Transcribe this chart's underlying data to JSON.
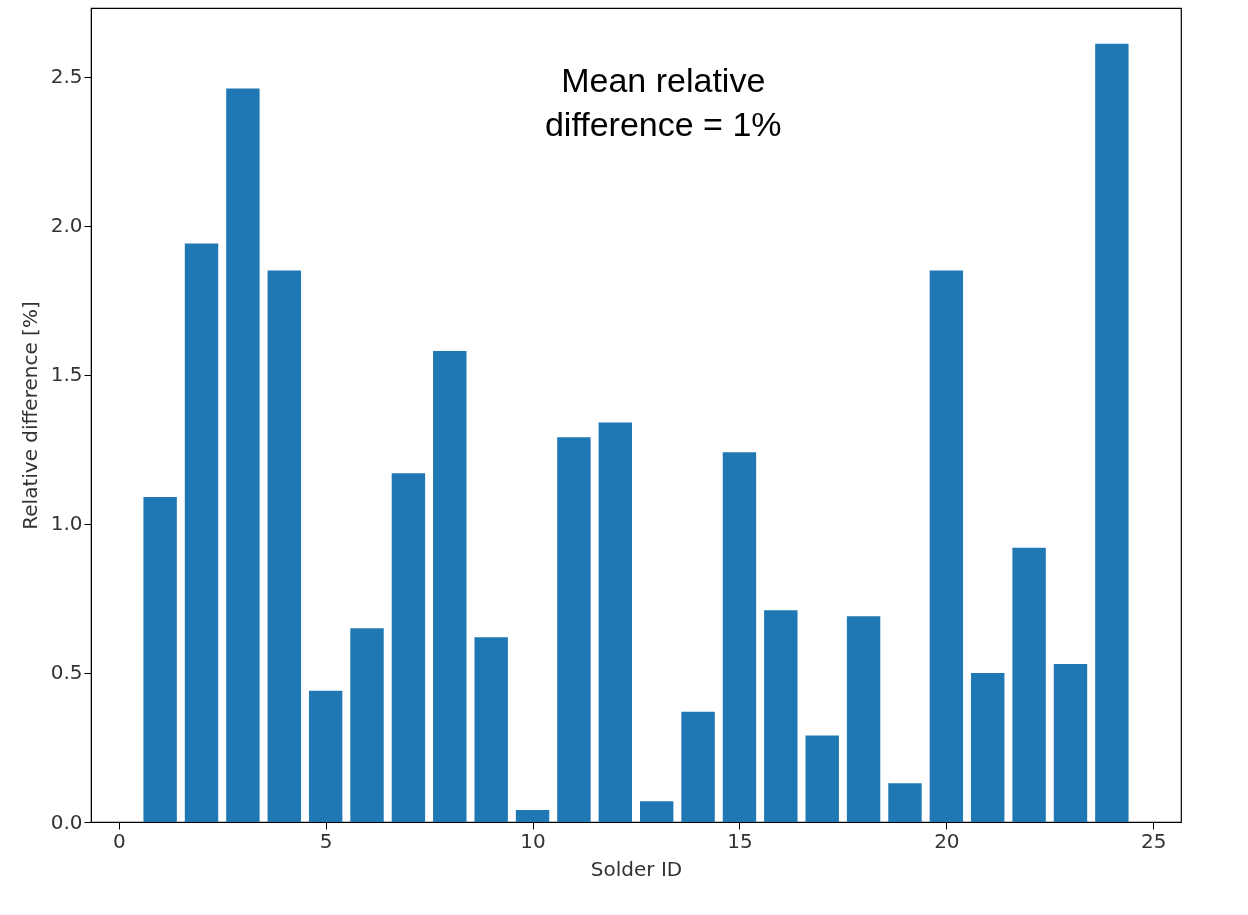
{
  "chart_data": {
    "type": "bar",
    "xlabel": "Solder ID",
    "ylabel": "Relative difference [%]",
    "x": [
      1,
      2,
      3,
      4,
      5,
      6,
      7,
      8,
      9,
      10,
      11,
      12,
      13,
      14,
      15,
      16,
      17,
      18,
      19,
      20,
      21,
      22,
      23,
      24
    ],
    "values": [
      1.09,
      1.94,
      2.46,
      1.85,
      0.44,
      0.65,
      1.17,
      1.58,
      0.62,
      0.04,
      1.29,
      1.34,
      0.07,
      0.37,
      1.24,
      0.71,
      0.29,
      0.69,
      0.13,
      1.85,
      0.5,
      0.92,
      0.53,
      2.61
    ],
    "color": "#1f77b4",
    "xlim": [
      -0.55,
      25.55
    ],
    "xticks": [
      0,
      5,
      10,
      15,
      20,
      25
    ],
    "ylim": [
      0,
      2.73
    ],
    "yticks": [
      {
        "value": 0,
        "label": "0.0"
      },
      0.5,
      {
        "value": 1,
        "label": "1.0"
      },
      1.5,
      {
        "value": 2,
        "label": "2.0"
      },
      2.5
    ],
    "grid": false,
    "annotations": [
      "Mean relative difference = 1%"
    ]
  }
}
